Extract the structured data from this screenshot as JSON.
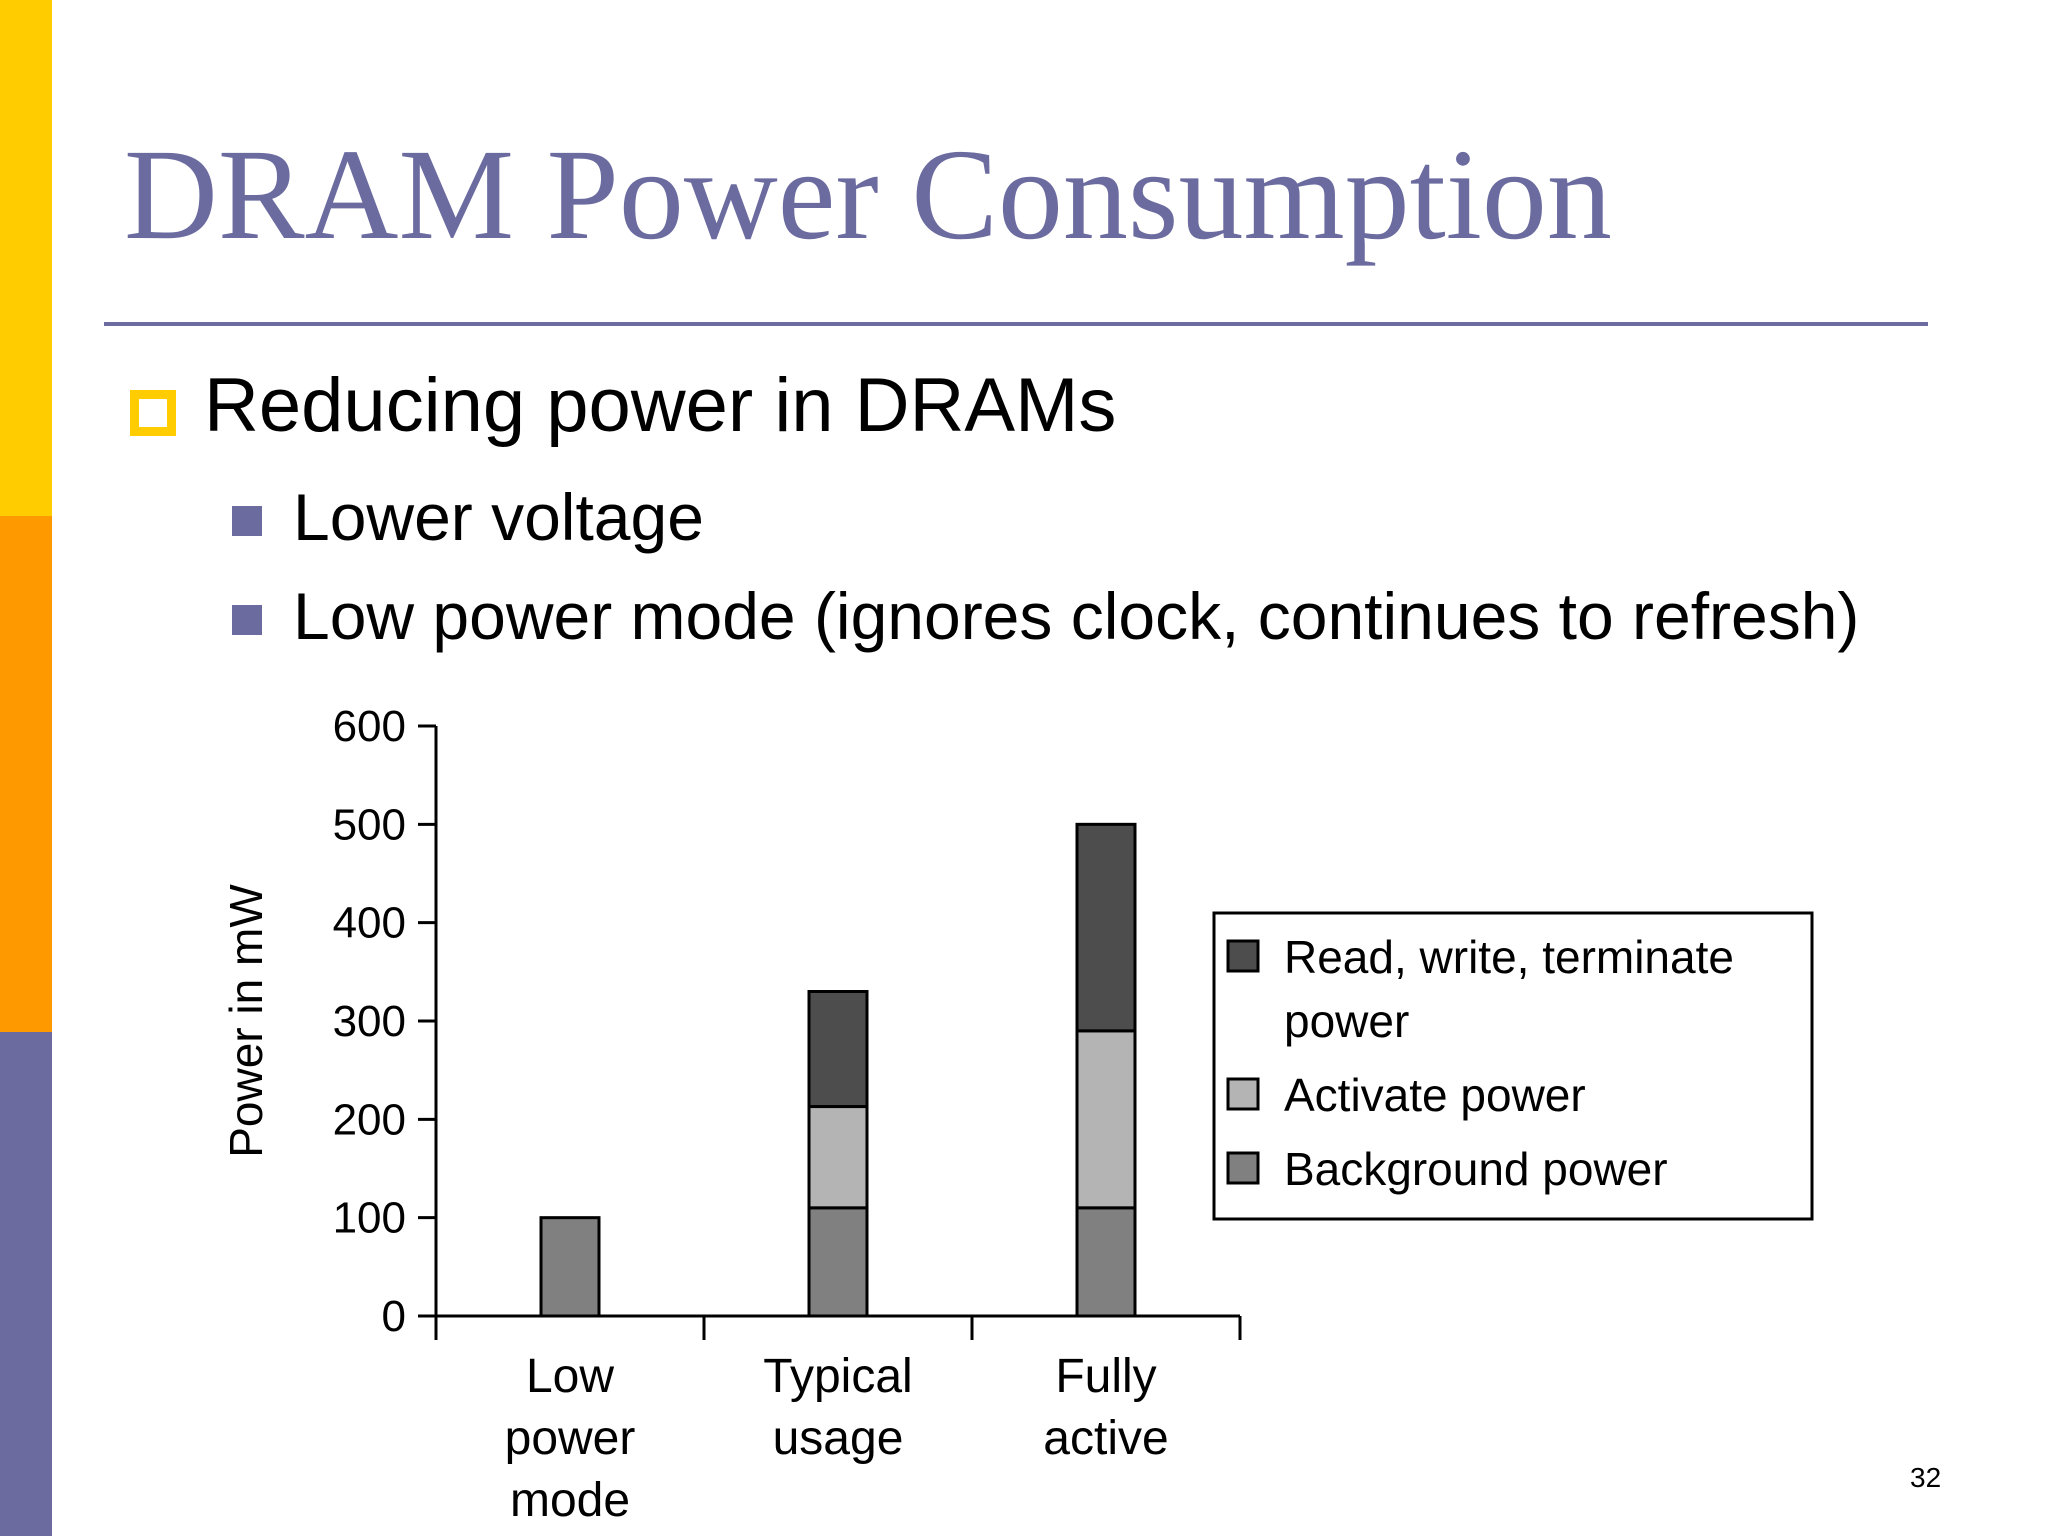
{
  "slide": {
    "title": "DRAM Power Consumption",
    "bullet": "Reducing power in DRAMs",
    "sub_bullets": [
      "Lower voltage",
      "Low power mode (ignores clock, continues to refresh)"
    ],
    "page_number": "32"
  },
  "colors": {
    "title": "#6B6BA0",
    "side_yellow": "#FFCC00",
    "side_orange": "#FF9900",
    "side_purple": "#6B6BA0"
  },
  "chart_data": {
    "type": "bar",
    "stacked": true,
    "categories": [
      [
        "Low",
        "power",
        "mode"
      ],
      [
        "Typical",
        "usage"
      ],
      [
        "Fully",
        "active"
      ]
    ],
    "series": [
      {
        "name": "Background power",
        "values": [
          100,
          110,
          110
        ],
        "color": "#808080"
      },
      {
        "name": "Activate power",
        "values": [
          0,
          103,
          180
        ],
        "color": "#B4B4B4"
      },
      {
        "name": "Read, write, terminate power",
        "values": [
          0,
          117,
          210
        ],
        "color": "#4D4D4D"
      }
    ],
    "legend_order": [
      [
        "Read, write, terminate",
        "power"
      ],
      [
        "Activate power"
      ],
      [
        "Background power"
      ]
    ],
    "legend_colors": [
      "#4D4D4D",
      "#B4B4B4",
      "#808080"
    ],
    "ylabel": "Power in mW",
    "xlabel": "",
    "ylim": [
      0,
      600
    ],
    "yticks": [
      0,
      100,
      200,
      300,
      400,
      500,
      600
    ],
    "grid": false,
    "legend_position": "right"
  }
}
